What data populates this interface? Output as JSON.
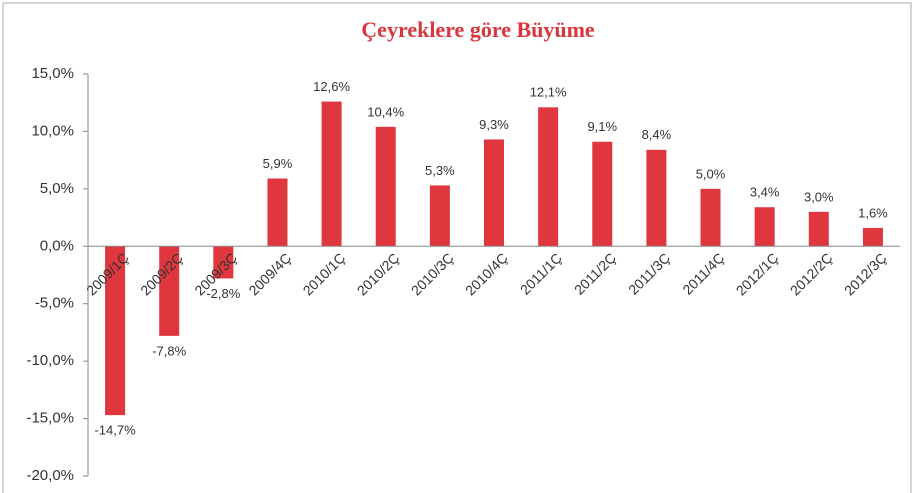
{
  "chart_data": {
    "type": "bar",
    "title": "Çeyreklere göre Büyüme",
    "categories": [
      "2009/1Ç",
      "2009/2Ç",
      "2009/3Ç",
      "2009/4Ç",
      "2010/1Ç",
      "2010/2Ç",
      "2010/3Ç",
      "2010/4Ç",
      "2011/1Ç",
      "2011/2Ç",
      "2011/3Ç",
      "2011/4Ç",
      "2012/1Ç",
      "2012/2Ç",
      "2012/3Ç"
    ],
    "values": [
      -14.7,
      -7.8,
      -2.8,
      5.9,
      12.6,
      10.4,
      5.3,
      9.3,
      12.1,
      9.1,
      8.4,
      5.0,
      3.4,
      3.0,
      1.6
    ],
    "value_labels": [
      "-14,7%",
      "-7,8%",
      "-2,8%",
      "5,9%",
      "12,6%",
      "10,4%",
      "5,3%",
      "9,3%",
      "12,1%",
      "9,1%",
      "8,4%",
      "5,0%",
      "3,4%",
      "3,0%",
      "1,6%"
    ],
    "color": "#e0373f",
    "ylim": [
      -20,
      15
    ],
    "yticks": [
      {
        "value": -20,
        "label": "-20,0%"
      },
      {
        "value": -15,
        "label": "-15,0%"
      },
      {
        "value": -10,
        "label": "-10,0%"
      },
      {
        "value": -5,
        "label": "-5,0%"
      },
      {
        "value": 0,
        "label": "0,0%"
      },
      {
        "value": 5,
        "label": "5,0%"
      },
      {
        "value": 10,
        "label": "10,0%"
      },
      {
        "value": 15,
        "label": "15,0%"
      }
    ],
    "grid": false
  }
}
